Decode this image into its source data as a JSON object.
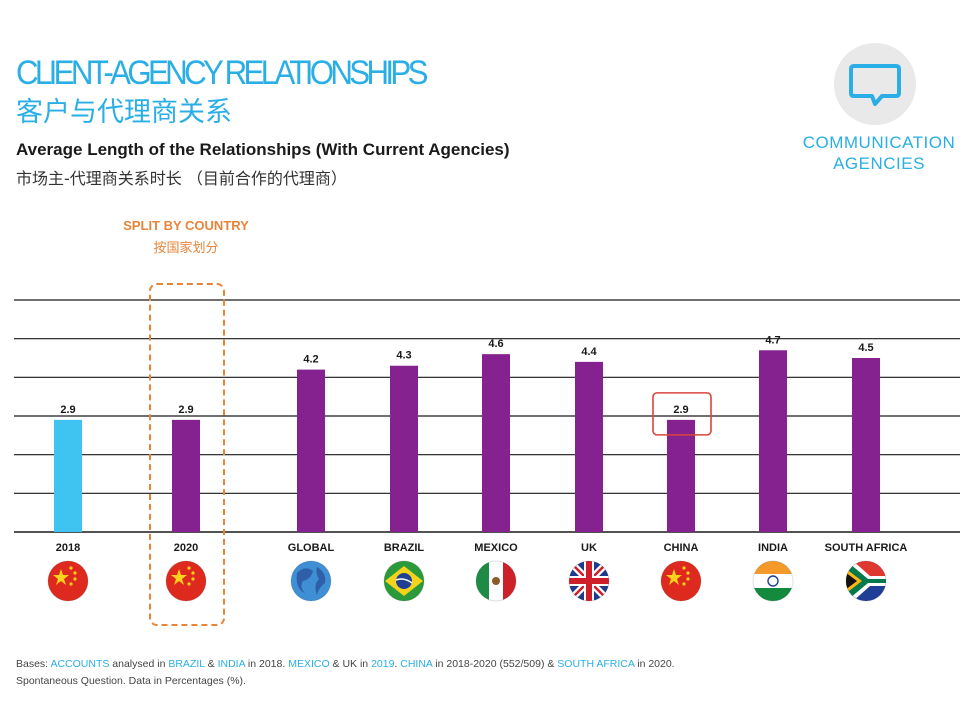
{
  "header": {
    "title_en": "CLIENT-AGENCY RELATIONSHIPS",
    "title_zh": "客户与代理商关系",
    "subtitle_en": "Average Length of the Relationships (With Current Agencies)",
    "subtitle_zh": "市场主-代理商关系时长 （目前合作的代理商）"
  },
  "badge": {
    "icon": "speech-bubble-icon",
    "label_line1": "COMMUNICATION",
    "label_line2": "AGENCIES"
  },
  "split_note": {
    "label_en": "SPLIT BY COUNTRY",
    "label_zh": "按国家划分"
  },
  "chart_data": {
    "type": "bar",
    "categories": [
      "2018",
      "2020",
      "GLOBAL",
      "BRAZIL",
      "MEXICO",
      "UK",
      "CHINA",
      "INDIA",
      "SOUTH AFRICA"
    ],
    "values": [
      2.9,
      2.9,
      4.2,
      4.3,
      4.6,
      4.4,
      2.9,
      4.7,
      4.5
    ],
    "value_labels": [
      "2.9",
      "2.9",
      "4.2",
      "4.3",
      "4.6",
      "4.4",
      "2.9",
      "4.7",
      "4.5"
    ],
    "ylim": [
      0,
      6
    ],
    "grid": true,
    "colors": {
      "2018": "#3fc3f0",
      "default": "#862290",
      "highlight_box": "#d9453b",
      "grid": "#1a1a1a"
    },
    "highlighted": [
      "CHINA"
    ],
    "flags": [
      "china-flag-icon",
      "china-flag-icon",
      "globe-icon",
      "brazil-flag-icon",
      "mexico-flag-icon",
      "uk-flag-icon",
      "china-flag-icon",
      "india-flag-icon",
      "south-africa-flag-icon"
    ]
  },
  "footnote": {
    "t1": "Bases: ",
    "accounts": "ACCOUNTS",
    "t2": " analysed in ",
    "brazil": "BRAZIL",
    "t3": " & ",
    "india": "INDIA",
    "t4": " in 2018. ",
    "mexico": "MEXICO",
    "t5": " & UK in ",
    "y2019": "2019",
    "t6": ". ",
    "china": "CHINA",
    "t7": " in 2018-2020 (552/509) & ",
    "south_africa": "SOUTH AFRICA",
    "t8": " in 2020.",
    "line2": "Spontaneous Question. Data in Percentages (%)."
  }
}
